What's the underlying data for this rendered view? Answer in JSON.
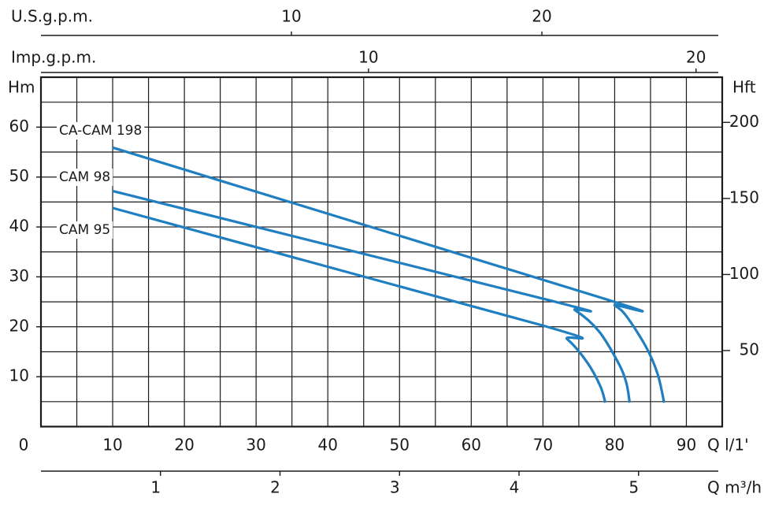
{
  "chart_data": {
    "type": "line",
    "x_label": "Q l/1'",
    "y_label": "Hm",
    "y2_label": "Hft",
    "xlim": [
      0,
      95
    ],
    "xticks": [
      0,
      10,
      20,
      30,
      40,
      50,
      60,
      70,
      80,
      90
    ],
    "minor_xticks": [
      5,
      15,
      25,
      35,
      45,
      55,
      65,
      75,
      85
    ],
    "ylim": [
      0,
      70
    ],
    "yticks": [
      10,
      20,
      30,
      40,
      50,
      60
    ],
    "minor_yticks": [
      5,
      15,
      25,
      35,
      45,
      55,
      65
    ],
    "y2lim": [
      0,
      229.7
    ],
    "y2ticks": [
      50,
      100,
      150,
      200
    ],
    "grid": true,
    "secondary_x_axes": [
      {
        "label": "U.S.g.p.m.",
        "position": "top",
        "xlim": [
          0,
          27.2
        ],
        "xticks": [
          10,
          20
        ]
      },
      {
        "label": "Imp.g.p.m.",
        "position": "top",
        "xlim": [
          0,
          20.8
        ],
        "xticks": [
          10,
          20
        ]
      },
      {
        "label": "Q m³/h",
        "position": "bottom",
        "xlim": [
          0,
          5.7
        ],
        "xticks": [
          1,
          2,
          3,
          4,
          5
        ]
      }
    ],
    "series": [
      {
        "name": "CA-CAM 198",
        "color": "#1f7fc0",
        "x": [
          10,
          78.4,
          80.0,
          81.6,
          84.4,
          86.0,
          86.9
        ],
        "values": [
          55.9,
          25.7,
          24.3,
          22.2,
          15.9,
          10.5,
          4.8
        ]
      },
      {
        "name": "CAM 98",
        "color": "#1f7fc0",
        "x": [
          10,
          71.2,
          74.5,
          77.8,
          80.5,
          81.6,
          82.1
        ],
        "values": [
          47.2,
          25.2,
          23.3,
          19.1,
          12.8,
          8.9,
          4.8
        ]
      },
      {
        "name": "CAM 95",
        "color": "#1f7fc0",
        "x": [
          10,
          70.1,
          73.4,
          76.2,
          78.0,
          78.7
        ],
        "values": [
          43.8,
          20.2,
          17.5,
          12.8,
          8.1,
          4.8
        ]
      }
    ]
  }
}
